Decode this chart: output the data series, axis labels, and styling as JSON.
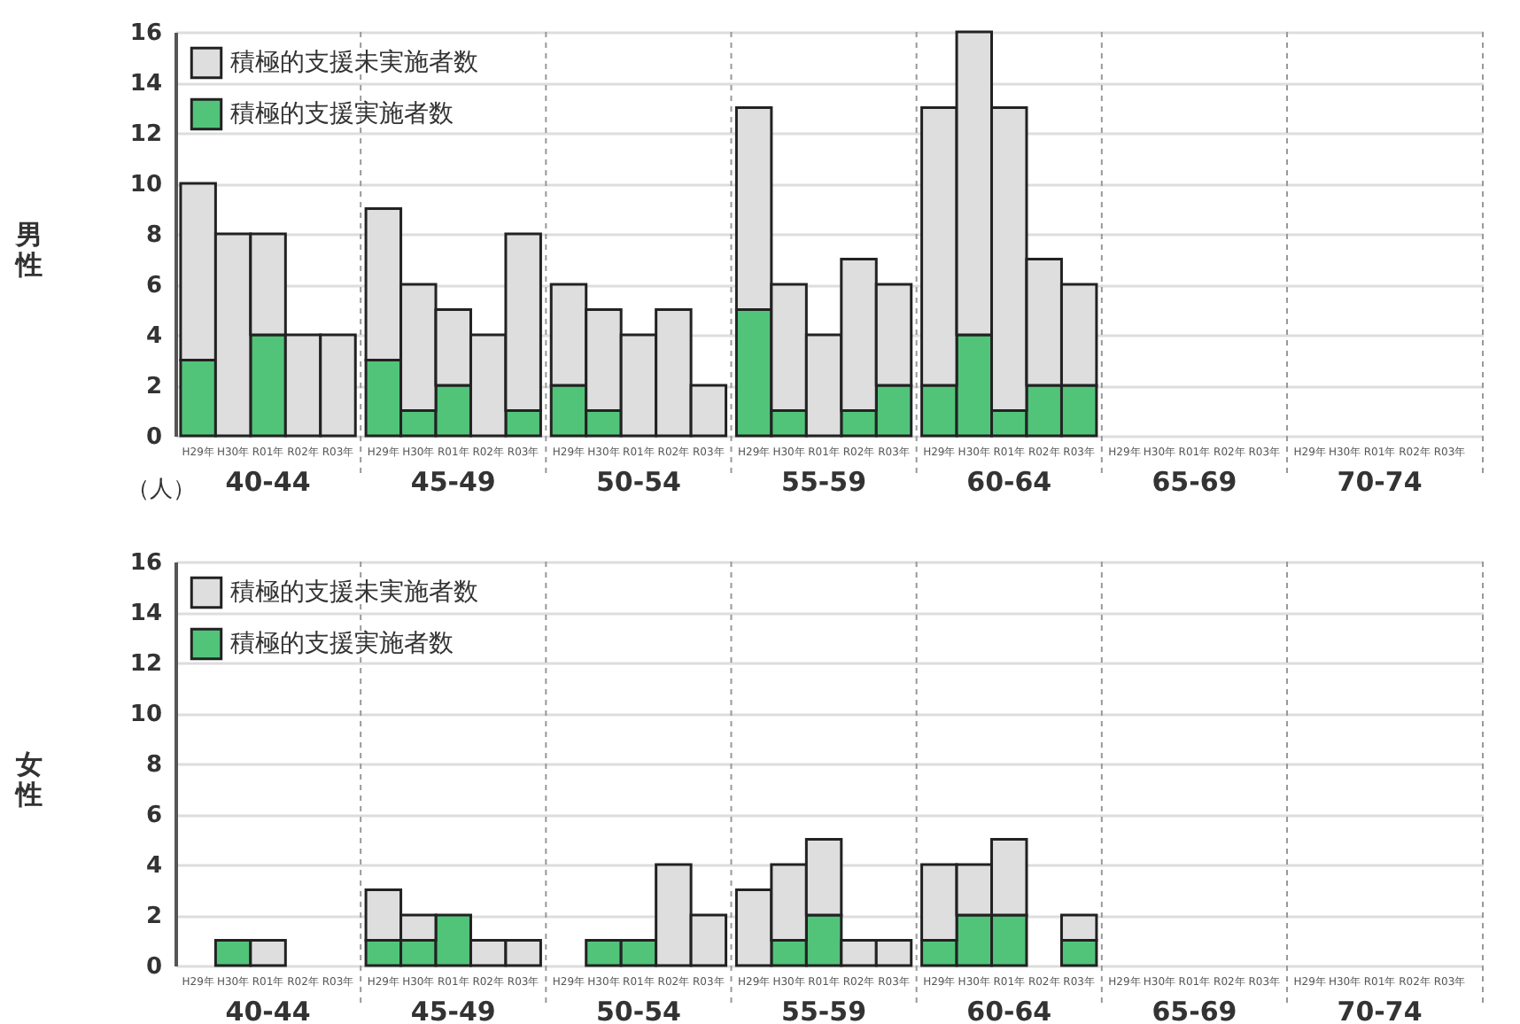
{
  "chart_data": [
    {
      "type": "bar",
      "stacked": true,
      "ylabel": "男性",
      "categories": [
        "H29年",
        "H30年",
        "R01年",
        "R02年",
        "R03年",
        "H29年",
        "H30年",
        "R01年",
        "R02年",
        "R03年",
        "H29年",
        "H30年",
        "R01年",
        "R02年",
        "R03年",
        "H29年",
        "H30年",
        "R01年",
        "R02年",
        "R03年",
        "H29年",
        "H30年",
        "R01年",
        "R02年",
        "R03年",
        "H29年",
        "H30年",
        "R01年",
        "R02年",
        "R03年",
        "H29年",
        "H30年",
        "R01年",
        "R02年",
        "R03年"
      ],
      "series": [
        {
          "name": "積極的支援実施者数",
          "color": "#52c47a",
          "values": [
            3,
            0,
            4,
            0,
            0,
            3,
            1,
            2,
            0,
            1,
            2,
            1,
            0,
            0,
            0,
            5,
            1,
            0,
            1,
            2,
            2,
            4,
            1,
            2,
            2,
            0,
            0,
            0,
            0,
            0,
            0,
            0,
            0,
            0,
            0
          ]
        },
        {
          "name": "積極的支援未実施者数",
          "color": "#dedede",
          "values": [
            7,
            8,
            4,
            4,
            4,
            6,
            5,
            3,
            4,
            7,
            4,
            4,
            4,
            5,
            2,
            8,
            5,
            4,
            6,
            4,
            11,
            12,
            12,
            5,
            4,
            0,
            0,
            0,
            0,
            0,
            0,
            0,
            0,
            0,
            0
          ]
        }
      ],
      "ylim": [
        0,
        16
      ],
      "yticks": [
        0,
        2,
        4,
        6,
        8,
        10,
        12,
        14,
        16
      ],
      "grid": "y",
      "legend": "top left",
      "annotations": [
        "40-44",
        "45-49",
        "50-54",
        "55-59",
        "60-64",
        "65-69",
        "70-74",
        "（人）"
      ]
    },
    {
      "type": "bar",
      "stacked": true,
      "ylabel": "女性",
      "categories": [
        "H29年",
        "H30年",
        "R01年",
        "R02年",
        "R03年",
        "H29年",
        "H30年",
        "R01年",
        "R02年",
        "R03年",
        "H29年",
        "H30年",
        "R01年",
        "R02年",
        "R03年",
        "H29年",
        "H30年",
        "R01年",
        "R02年",
        "R03年",
        "H29年",
        "H30年",
        "R01年",
        "R02年",
        "R03年",
        "H29年",
        "H30年",
        "R01年",
        "R02年",
        "R03年",
        "H29年",
        "H30年",
        "R01年",
        "R02年",
        "R03年"
      ],
      "series": [
        {
          "name": "積極的支援実施者数",
          "color": "#52c47a",
          "values": [
            0,
            1,
            0,
            0,
            0,
            1,
            1,
            2,
            0,
            0,
            0,
            1,
            1,
            0,
            0,
            0,
            1,
            2,
            0,
            0,
            1,
            2,
            2,
            0,
            1,
            0,
            0,
            0,
            0,
            0,
            0,
            0,
            0,
            0,
            0
          ]
        },
        {
          "name": "積極的支援未実施者数",
          "color": "#dedede",
          "values": [
            0,
            0,
            1,
            0,
            0,
            2,
            1,
            0,
            1,
            1,
            0,
            0,
            0,
            4,
            2,
            3,
            3,
            3,
            1,
            1,
            3,
            2,
            3,
            0,
            1,
            0,
            0,
            0,
            0,
            0,
            0,
            0,
            0,
            0,
            0
          ]
        }
      ],
      "ylim": [
        0,
        16
      ],
      "yticks": [
        0,
        2,
        4,
        6,
        8,
        10,
        12,
        14,
        16
      ],
      "grid": "y",
      "legend": "top left",
      "annotations": [
        "40-44",
        "45-49",
        "50-54",
        "55-59",
        "60-64",
        "65-69",
        "70-74"
      ]
    }
  ]
}
